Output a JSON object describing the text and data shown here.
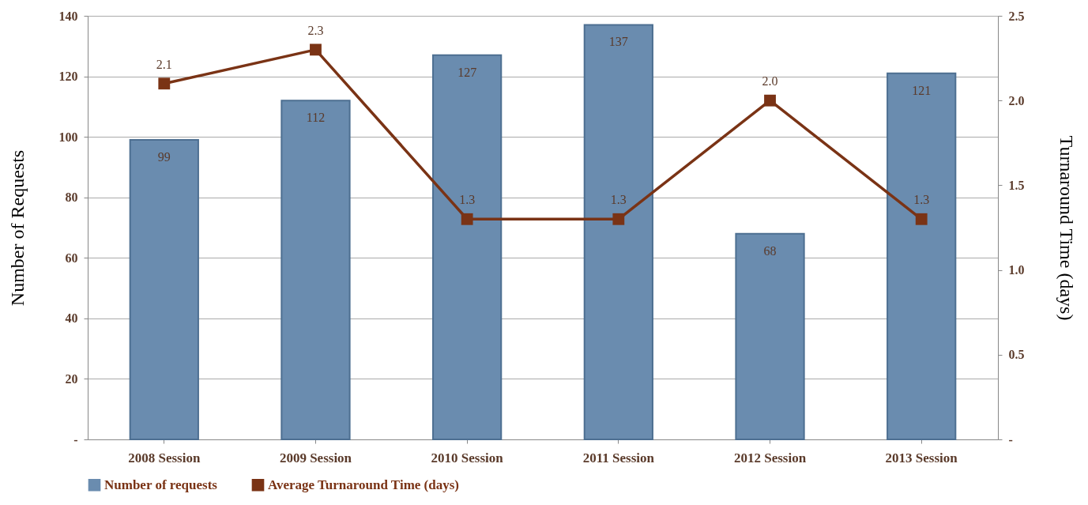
{
  "chart_data": {
    "type": "bar",
    "categories": [
      "2008 Session",
      "2009 Session",
      "2010 Session",
      "2011 Session",
      "2012 Session",
      "2013 Session"
    ],
    "ylabel": "Number of Requests",
    "y2label": "Turnaround Time (days)",
    "ylim": [
      0,
      140
    ],
    "yticks": [
      {
        "value": 0,
        "label": "-"
      },
      20,
      40,
      60,
      80,
      100,
      120,
      140
    ],
    "y2lim": [
      0,
      2.5
    ],
    "y2ticks": [
      {
        "value": 0,
        "label": "-"
      },
      0.5,
      {
        "value": 1,
        "label": "1.0"
      },
      1.5,
      {
        "value": 2,
        "label": "2.0"
      },
      2.5
    ],
    "grid": "y",
    "legend": "bottom",
    "marker": "square",
    "series": [
      {
        "name": "Number of requests",
        "color": "#6a8caf",
        "values": [
          99,
          112,
          127,
          137,
          68,
          121
        ],
        "value_labels": [
          "99",
          "112",
          "127",
          "137",
          "68",
          "121"
        ]
      },
      {
        "name": "Average Turnaround Time (days)",
        "type": "line",
        "axis": "y2",
        "color": "#7a3315",
        "values": [
          2.1,
          2.3,
          1.3,
          1.3,
          2.0,
          1.3
        ],
        "value_labels": [
          "2.1",
          "2.3",
          "1.3",
          "1.3",
          "2.0",
          "1.3"
        ]
      }
    ]
  }
}
